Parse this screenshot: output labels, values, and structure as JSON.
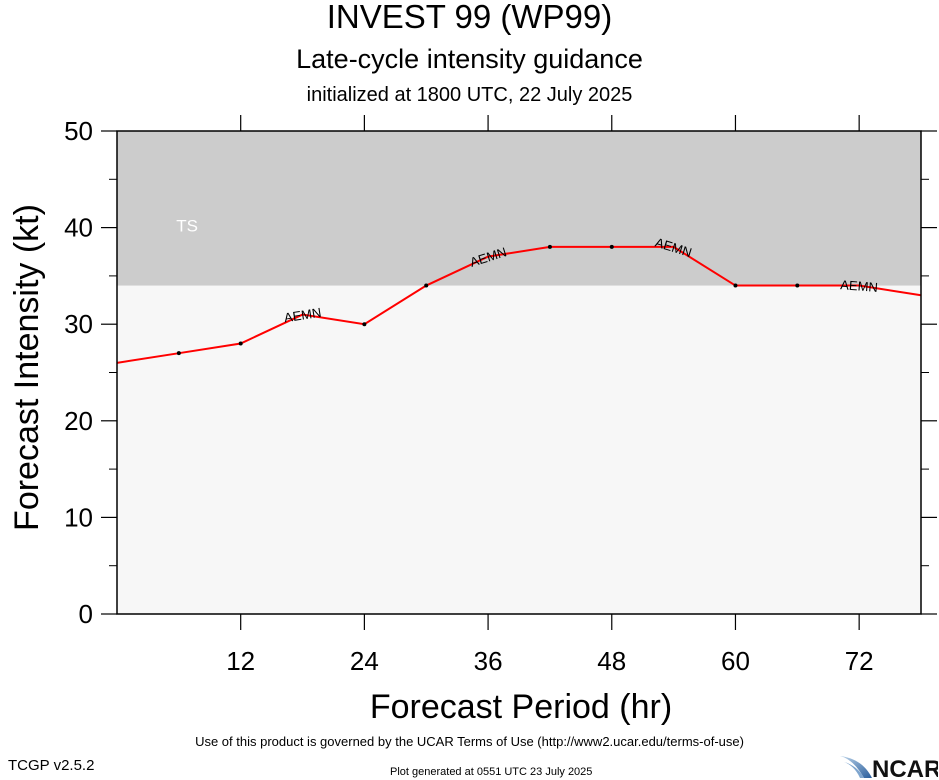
{
  "header": {
    "title": "INVEST 99 (WP99)",
    "subtitle": "Late-cycle intensity guidance",
    "init": "initialized at 1800 UTC, 22 July 2025"
  },
  "chart_data": {
    "type": "line",
    "xlabel": "Forecast Period (hr)",
    "ylabel": "Forecast Intensity (kt)",
    "xlim": [
      0,
      78
    ],
    "ylim": [
      0,
      50
    ],
    "xticks": [
      12,
      24,
      36,
      48,
      60,
      72
    ],
    "yticks": [
      0,
      10,
      20,
      30,
      40,
      50
    ],
    "bands": [
      {
        "label": "TS",
        "from": 34,
        "to": 50,
        "color": "#cccccc"
      }
    ],
    "plot_bg": "#f7f7f7",
    "series": [
      {
        "name": "AEMN",
        "color": "#ff0000",
        "x": [
          0,
          6,
          12,
          18,
          24,
          30,
          36,
          42,
          48,
          54,
          60,
          66,
          72,
          78
        ],
        "y": [
          26,
          27,
          28,
          31,
          30,
          34,
          37,
          38,
          38,
          38,
          34,
          34,
          34,
          33
        ],
        "label_at": [
          18,
          36,
          54,
          72
        ]
      }
    ]
  },
  "footer": {
    "terms": "Use of this product is governed by the UCAR Terms of Use (http://www2.ucar.edu/terms-of-use)",
    "version": "TCGP v2.5.2",
    "generated": "Plot generated at 0551 UTC   23 July 2025",
    "logo_text": "NCAR"
  }
}
